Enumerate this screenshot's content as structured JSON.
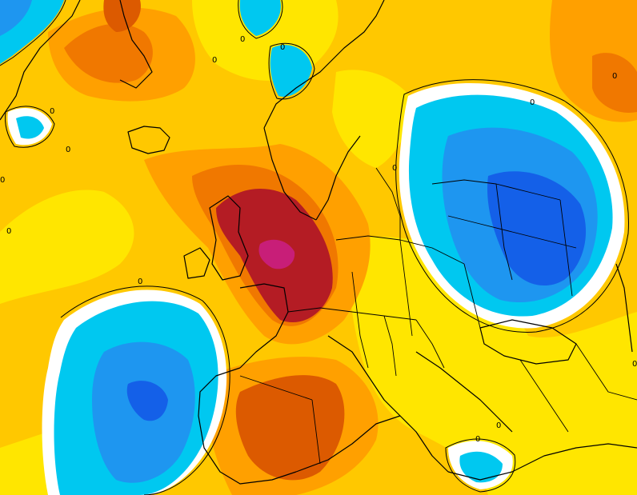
{
  "map": {
    "type": "temperature-anomaly-field",
    "region": "Europe and North Atlantic",
    "palette": {
      "deep_blue": "#1460e8",
      "blue": "#1e96f0",
      "light_blue": "#00c8f0",
      "white": "#ffffff",
      "yellow": "#ffe600",
      "gold": "#ffc800",
      "light_orange": "#ffa000",
      "orange": "#f07800",
      "dark_orange": "#dc5a00",
      "dark_red": "#b41c24",
      "magenta": "#c81e78"
    },
    "contour_labels": [
      {
        "text": "0"
      },
      {
        "text": "0"
      },
      {
        "text": "0"
      },
      {
        "text": "0"
      },
      {
        "text": "0"
      },
      {
        "text": "0"
      },
      {
        "text": "0"
      },
      {
        "text": "0"
      },
      {
        "text": "0"
      },
      {
        "text": "0"
      },
      {
        "text": "0"
      },
      {
        "text": "0"
      },
      {
        "text": "0"
      },
      {
        "text": "0"
      }
    ]
  }
}
